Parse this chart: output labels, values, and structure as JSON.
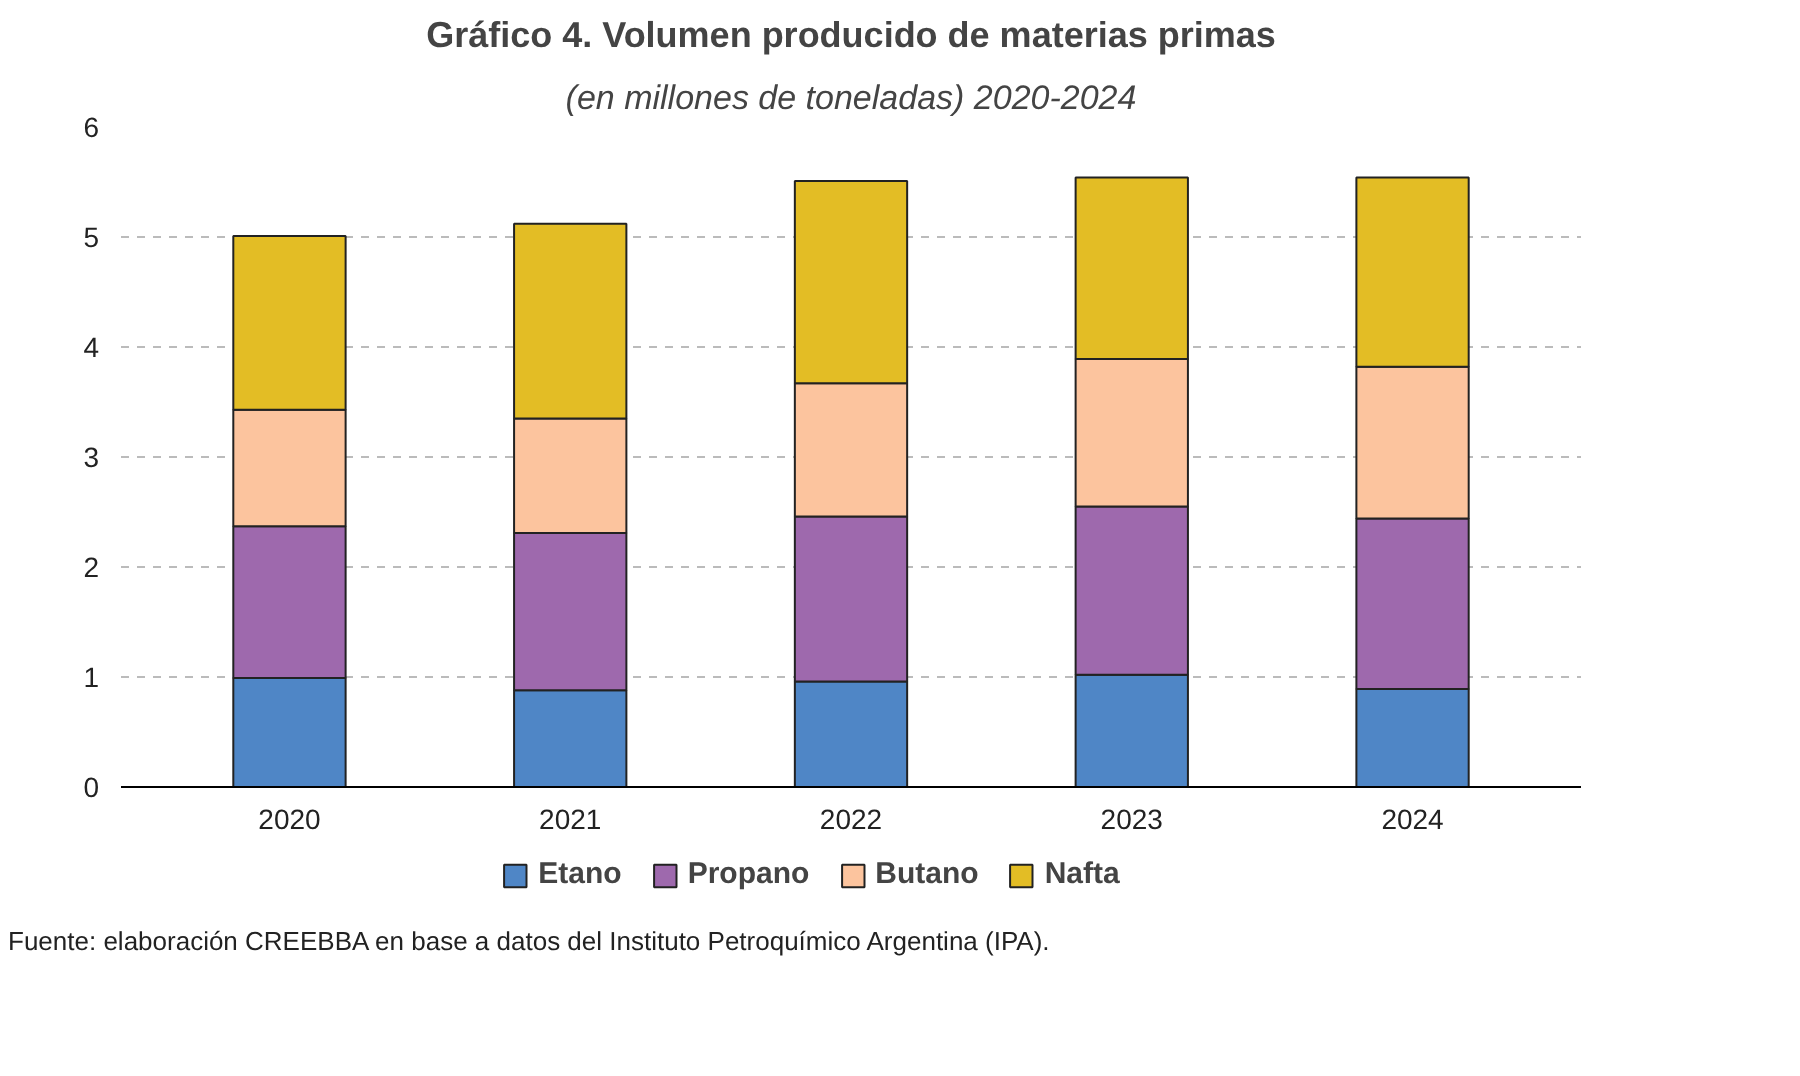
{
  "chart_data": {
    "type": "bar",
    "title": "Gráfico 4. Volumen producido de materias primas",
    "subtitle": "(en millones de toneladas) 2020-2024",
    "categories": [
      "2020",
      "2021",
      "2022",
      "2023",
      "2024"
    ],
    "stacked": true,
    "series": [
      {
        "name": "Etano",
        "color": "#4f86c6",
        "values": [
          0.99,
          0.88,
          0.96,
          1.02,
          0.89
        ]
      },
      {
        "name": "Propano",
        "color": "#9e69ad",
        "values": [
          1.38,
          1.43,
          1.5,
          1.53,
          1.55
        ]
      },
      {
        "name": "Butano",
        "color": "#fcc49e",
        "values": [
          1.06,
          1.04,
          1.21,
          1.34,
          1.38
        ]
      },
      {
        "name": "Nafta",
        "color": "#e3bd25",
        "values": [
          1.58,
          1.77,
          1.84,
          1.65,
          1.72
        ]
      }
    ],
    "ylim": [
      0,
      6
    ],
    "yticks": [
      0,
      1,
      2,
      3,
      4,
      5,
      6
    ],
    "grid": "y",
    "legend": "bottom",
    "annotations": [
      "Fuente: elaboración CREEBBA en base a datos del Instituto Petroquímico Argentina (IPA)."
    ]
  }
}
